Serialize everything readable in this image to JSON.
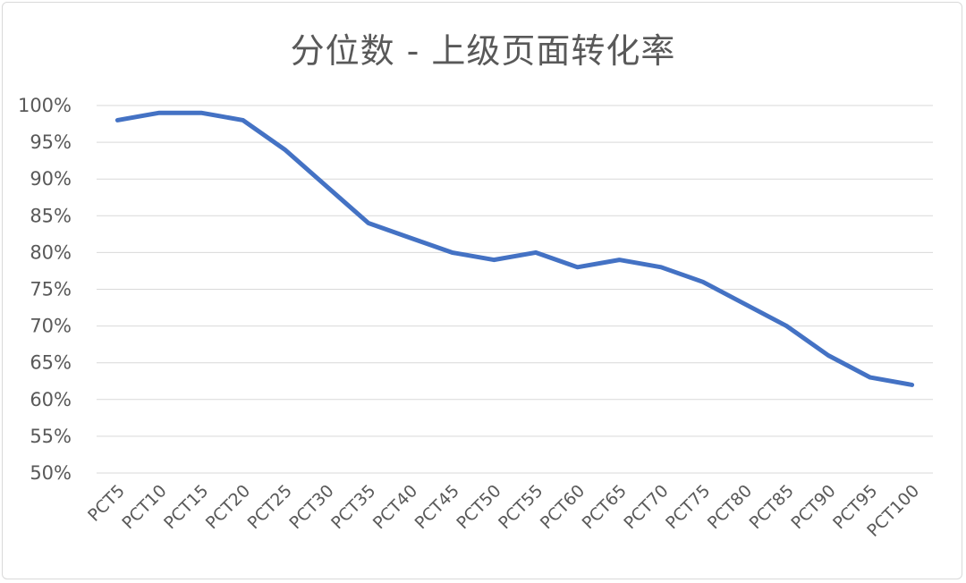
{
  "chart_data": {
    "type": "line",
    "title": "分位数 - 上级页面转化率",
    "xlabel": "",
    "ylabel": "",
    "categories": [
      "PCT5",
      "PCT10",
      "PCT15",
      "PCT20",
      "PCT25",
      "PCT30",
      "PCT35",
      "PCT40",
      "PCT45",
      "PCT50",
      "PCT55",
      "PCT60",
      "PCT65",
      "PCT70",
      "PCT75",
      "PCT80",
      "PCT85",
      "PCT90",
      "PCT95",
      "PCT100"
    ],
    "series": [
      {
        "values": [
          0.98,
          0.99,
          0.99,
          0.98,
          0.94,
          0.89,
          0.84,
          0.82,
          0.8,
          0.79,
          0.8,
          0.78,
          0.79,
          0.78,
          0.76,
          0.73,
          0.7,
          0.66,
          0.63,
          0.62
        ],
        "color": "#4472c4"
      }
    ],
    "ylim": [
      0.5,
      1.0
    ],
    "yticks": [
      "50%",
      "55%",
      "60%",
      "65%",
      "70%",
      "75%",
      "80%",
      "85%",
      "90%",
      "95%",
      "100%"
    ],
    "grid": true,
    "legend": "none"
  },
  "colors": {
    "line": "#4472c4",
    "grid": "#d9d9d9",
    "text": "#595959"
  }
}
